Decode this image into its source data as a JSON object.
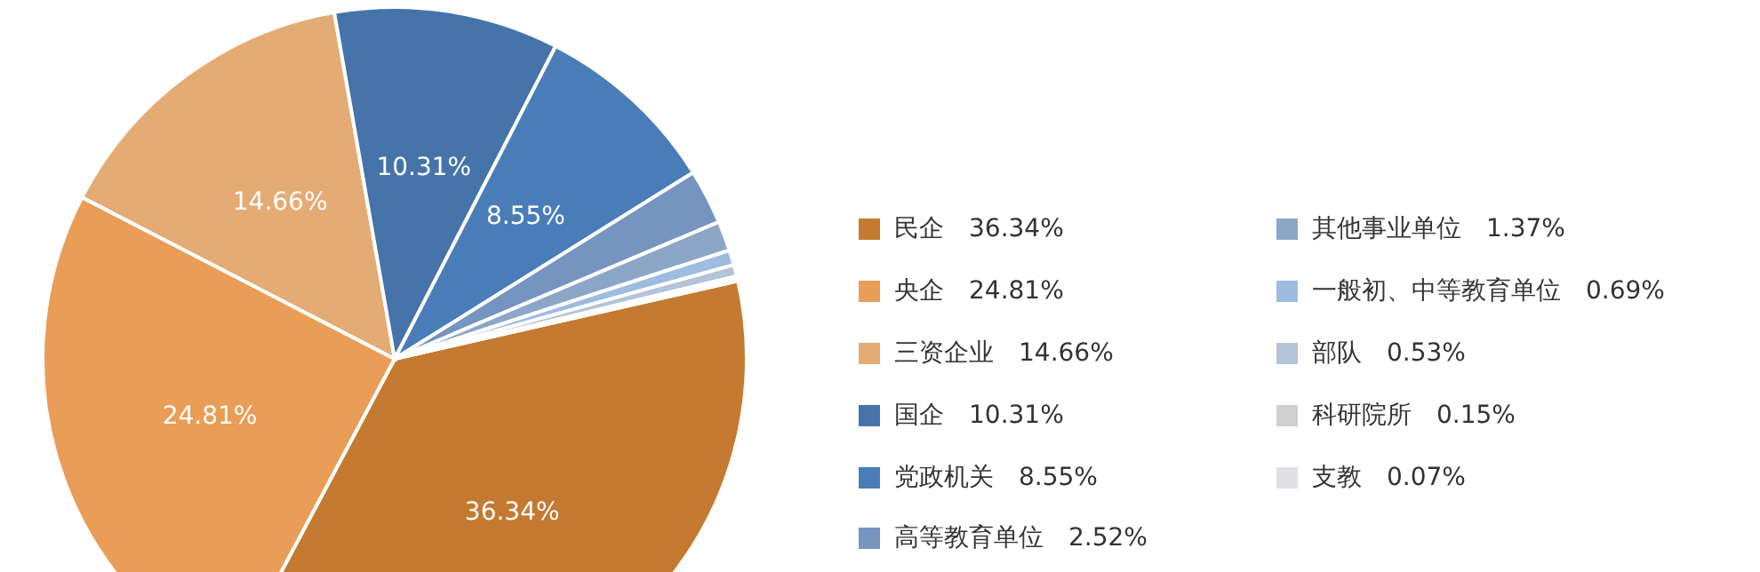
{
  "chart_data": {
    "type": "pie",
    "categories": [
      "民企",
      "央企",
      "三资企业",
      "国企",
      "党政机关",
      "高等教育单位",
      "其他事业单位",
      "一般初、中等教育单位",
      "部队",
      "科研院所",
      "支教"
    ],
    "values": [
      36.34,
      24.81,
      14.66,
      10.31,
      8.55,
      2.52,
      1.37,
      0.69,
      0.53,
      0.15,
      0.07
    ],
    "colors": [
      "#c47a30",
      "#e99d57",
      "#e5ab74",
      "#4673aa",
      "#4a7db8",
      "#7694c0",
      "#8ca6c8",
      "#9ebbe0",
      "#b4c3d8",
      "#cfcfcf",
      "#e0e0e2"
    ],
    "value_labels": [
      "36.34%",
      "24.81%",
      "14.66%",
      "10.31%",
      "8.55%",
      "2.52%",
      "1.37%",
      "0.69%",
      "0.53%",
      "0.15%",
      "0.07%"
    ],
    "legend": "right"
  }
}
